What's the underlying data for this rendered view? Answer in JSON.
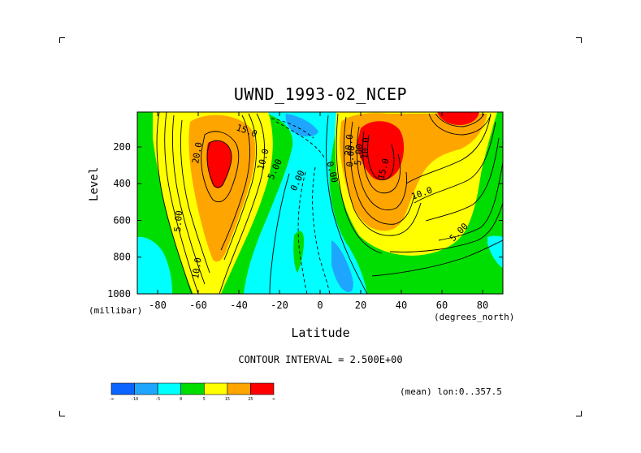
{
  "chart_data": {
    "type": "contour",
    "title": "UWND_1993-02_NCEP",
    "xlabel": "Latitude",
    "ylabel": "Level",
    "x_unit": "(degrees_north)",
    "y_unit": "(millibar)",
    "xlim": [
      -90,
      90
    ],
    "ylim": [
      1000,
      10
    ],
    "x_ticks": [
      -80,
      -60,
      -40,
      -20,
      0,
      20,
      40,
      60,
      80
    ],
    "x_tick_labels": [
      "-80",
      "-60",
      "-40",
      "-20",
      "0",
      "20",
      "40",
      "60",
      "80"
    ],
    "y_ticks": [
      200,
      400,
      600,
      800,
      1000
    ],
    "y_tick_labels": [
      "200",
      "400",
      "600",
      "800",
      "1000"
    ],
    "contour_interval_text": "CONTOUR INTERVAL = 2.500E+00",
    "region_text": "(mean) lon:0..357.5",
    "contour_labels": [
      "15.0",
      "20.0",
      "10.0",
      "5.00",
      "0.00",
      "0.00",
      "5.00",
      "10.0",
      "0.00",
      "5.00",
      "10.0",
      "15.0",
      "20.0",
      "10.0",
      "5.00"
    ],
    "features": [
      {
        "name": "southern jet core",
        "lat": -52,
        "level": 270,
        "value_min": 25
      },
      {
        "name": "northern jet core",
        "lat": 28,
        "level": 200,
        "value_min": 25
      },
      {
        "name": "polar upper maximum",
        "lat": 65,
        "level": 30,
        "value_min": 25
      },
      {
        "name": "tropical easterlies",
        "lat": -8,
        "level": 100,
        "value_max": -5
      },
      {
        "name": "low-level easterlies",
        "lat": 12,
        "level": 900,
        "value_max": -5
      }
    ],
    "colorbar": {
      "colors": [
        "#0a64ff",
        "#1ea6ff",
        "#00ffff",
        "#00dd00",
        "#ffff00",
        "#ffa500",
        "#ff0000"
      ],
      "labels": [
        "-∞",
        "-10",
        "-5",
        "0",
        "5",
        "15",
        "25",
        "∞"
      ]
    }
  },
  "corners": [
    "top-left",
    "top-right",
    "bottom-left",
    "bottom-right"
  ]
}
